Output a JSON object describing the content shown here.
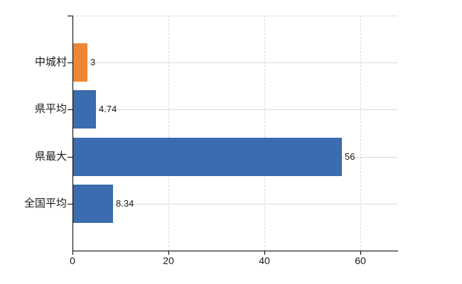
{
  "chart_data": {
    "type": "bar",
    "orientation": "horizontal",
    "title": "",
    "categories": [
      "中城村",
      "県平均",
      "県最大",
      "全国平均"
    ],
    "values": [
      3,
      4.74,
      56,
      8.34
    ],
    "value_labels": [
      "3",
      "4.74",
      "56",
      "8.34"
    ],
    "series": [
      {
        "name": "value",
        "values": [
          3,
          4.74,
          56,
          8.34
        ]
      }
    ],
    "highlight_index": 0,
    "bar_colors": [
      "#EC8835",
      "#3A6CAF",
      "#3A6CAF",
      "#3A6CAF"
    ],
    "xticks": [
      0,
      20,
      40,
      60
    ],
    "xtick_labels": [
      "0",
      "20",
      "40",
      "60"
    ],
    "xlim": [
      0,
      67.7
    ],
    "xlabel": "",
    "ylabel": "",
    "grid": true,
    "legend": false,
    "colors": {
      "highlight": "#EC8835",
      "base": "#3A6CAF",
      "h_grid": "#D7DBD7",
      "v_grid": "#D9D9D9",
      "plot_border": "#D2D2D2",
      "axis": "#000000",
      "text": "#1A1A1A"
    }
  }
}
